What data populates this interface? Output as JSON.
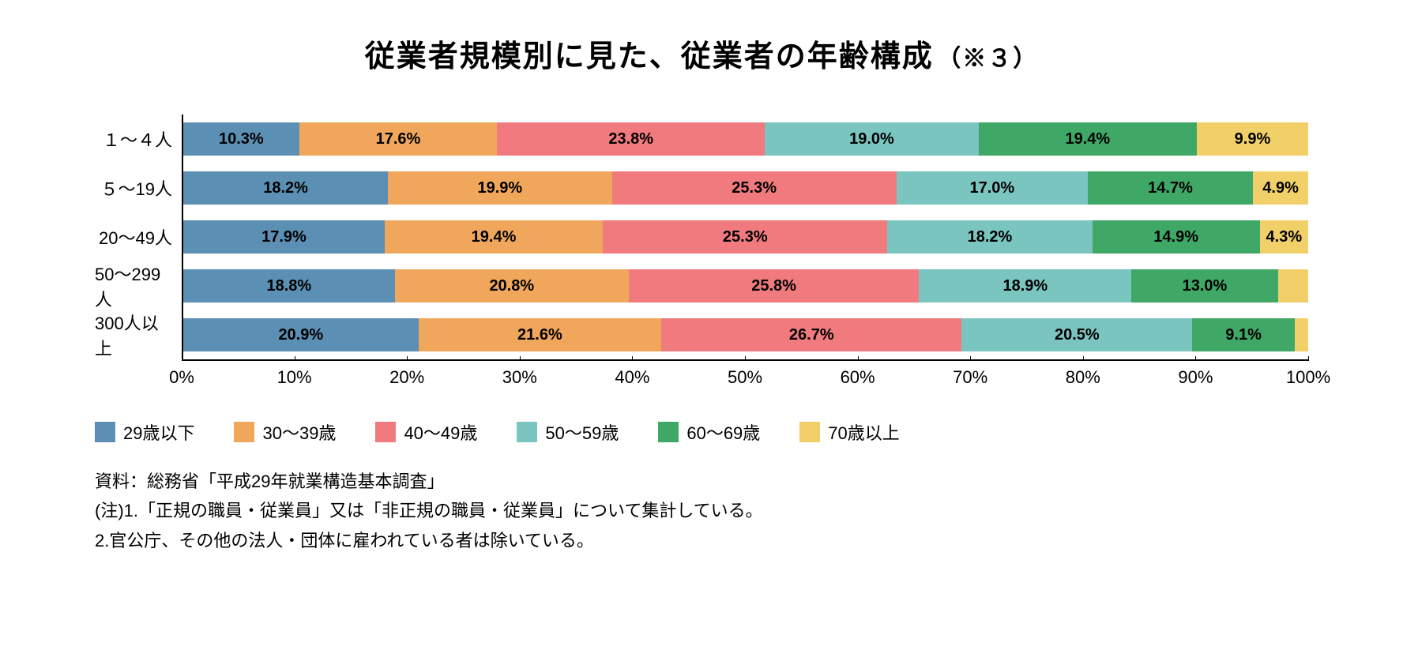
{
  "title": {
    "main": "従業者規模別に見た、従業者の年齢構成",
    "sub": "（※３）",
    "main_fontsize": 38,
    "sub_fontsize": 30,
    "color": "#000000"
  },
  "chart": {
    "type": "stacked-horizontal-bar",
    "background_color": "#ffffff",
    "axis_color": "#000000",
    "label_fontsize": 22,
    "value_fontsize": 20,
    "bar_row_height": 62,
    "min_label_percent": 3.5,
    "xaxis": {
      "min": 0,
      "max": 100,
      "tick_step": 10,
      "tick_suffix": "%"
    },
    "series": [
      {
        "name": "29歳以下",
        "color": "#5b8fb4"
      },
      {
        "name": "30〜39歳",
        "color": "#f0a75b"
      },
      {
        "name": "40〜49歳",
        "color": "#f07a7d"
      },
      {
        "name": "50〜59歳",
        "color": "#7bc5c0"
      },
      {
        "name": "60〜69歳",
        "color": "#3fa866"
      },
      {
        "name": "70歳以上",
        "color": "#f2d069"
      }
    ],
    "categories": [
      {
        "label": "１〜４人",
        "values": [
          10.3,
          17.6,
          23.8,
          19.0,
          19.4,
          9.9
        ]
      },
      {
        "label": "５〜19人",
        "values": [
          18.2,
          19.9,
          25.3,
          17.0,
          14.7,
          4.9
        ]
      },
      {
        "label": "20〜49人",
        "values": [
          17.9,
          19.4,
          25.3,
          18.2,
          14.9,
          4.3
        ]
      },
      {
        "label": "50〜299人",
        "values": [
          18.8,
          20.8,
          25.8,
          18.9,
          13.0,
          2.7
        ]
      },
      {
        "label": "300人以上",
        "values": [
          20.9,
          21.6,
          26.7,
          20.5,
          9.1,
          1.2
        ]
      }
    ],
    "value_suffix": "%"
  },
  "notes": {
    "lines": [
      "資料：総務省「平成29年就業構造基本調査」",
      "(注)1.「正規の職員・従業員」又は「非正規の職員・従業員」について集計している。",
      "2.官公庁、その他の法人・団体に雇われている者は除いている。"
    ],
    "fontsize": 22,
    "color": "#000000"
  }
}
